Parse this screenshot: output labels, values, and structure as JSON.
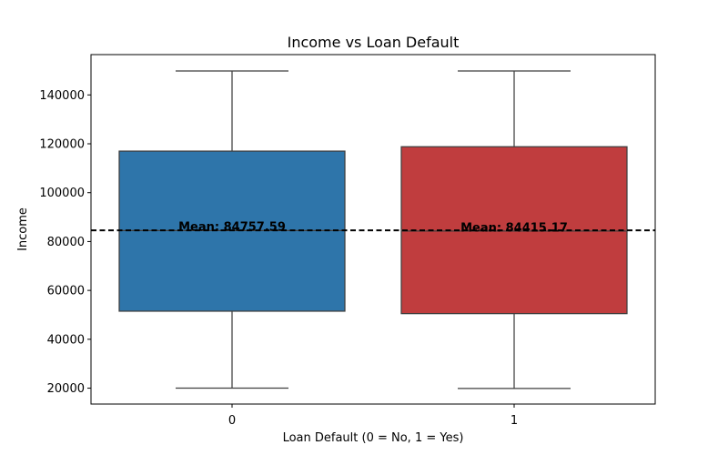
{
  "colors": {
    "box_0": "#2e75aa",
    "box_1": "#c03d3e",
    "line": "#3f3f3f",
    "mean_line": "#000000"
  },
  "chart_data": {
    "type": "box",
    "title": "Income vs Loan Default",
    "xlabel": "Loan Default (0 = No, 1 = Yes)",
    "ylabel": "Income",
    "categories": [
      "0",
      "1"
    ],
    "ylim": [
      13500,
      156500
    ],
    "yticks": [
      20000,
      40000,
      60000,
      80000,
      100000,
      120000,
      140000
    ],
    "grid": false,
    "boxes": [
      {
        "category": "0",
        "whisker_low": 20000,
        "q1": 51500,
        "median": 84500,
        "q3": 117000,
        "whisker_high": 149800
      },
      {
        "category": "1",
        "whisker_low": 19900,
        "q1": 50500,
        "median": 84300,
        "q3": 118800,
        "whisker_high": 149800
      }
    ],
    "overall_mean": 84600,
    "mean_labels": [
      {
        "category": "0",
        "text": "Mean: 84757.59",
        "value": 84757.59
      },
      {
        "category": "1",
        "text": "Mean: 84415.17",
        "value": 84415.17
      }
    ]
  }
}
